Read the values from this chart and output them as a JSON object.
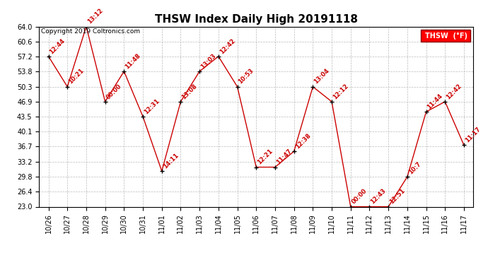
{
  "title": "THSW Index Daily High 20191118",
  "copyright": "Copyright 2019 Coltronics.com",
  "legend_label": "THSW  (°F)",
  "x_labels": [
    "10/26",
    "10/27",
    "10/28",
    "10/29",
    "10/30",
    "10/31",
    "11/01",
    "11/02",
    "11/03",
    "11/04",
    "11/05",
    "11/06",
    "11/07",
    "11/08",
    "11/09",
    "11/10",
    "11/11",
    "11/12",
    "11/13",
    "11/14",
    "11/15",
    "11/16",
    "11/17"
  ],
  "values": [
    57.2,
    50.3,
    64.0,
    46.9,
    53.8,
    43.5,
    31.1,
    46.9,
    53.8,
    57.2,
    50.3,
    32.0,
    32.0,
    35.6,
    50.3,
    46.9,
    23.0,
    23.0,
    23.0,
    29.8,
    44.6,
    46.9,
    37.0
  ],
  "time_labels": [
    "12:44",
    "10:21",
    "13:12",
    "00:00",
    "11:48",
    "12:31",
    "14:11",
    "13:08",
    "13:03",
    "12:42",
    "10:53",
    "12:21",
    "11:47",
    "12:38",
    "13:04",
    "12:12",
    "00:00",
    "12:43",
    "12:51",
    "10:7",
    "11:44",
    "12:42",
    "11:17"
  ],
  "line_color": "#cc0000",
  "marker_color": "#000000",
  "background_color": "#ffffff",
  "grid_color": "#bbbbbb",
  "ylim": [
    23.0,
    64.0
  ],
  "yticks": [
    23.0,
    26.4,
    29.8,
    33.2,
    36.7,
    40.1,
    43.5,
    46.9,
    50.3,
    53.8,
    57.2,
    60.6,
    64.0
  ],
  "title_fontsize": 11,
  "copyright_fontsize": 6.5,
  "label_fontsize": 6,
  "tick_fontsize": 7
}
